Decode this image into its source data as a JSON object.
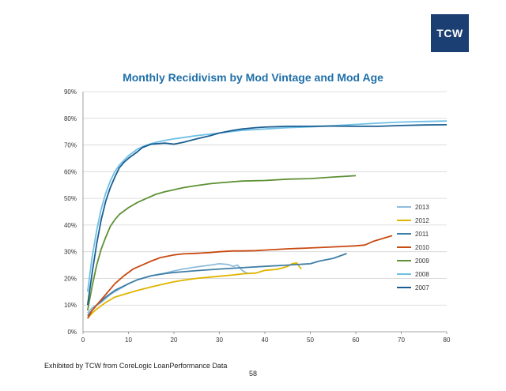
{
  "header": {
    "logo_text": "TCW"
  },
  "footer": {
    "source_note": "Exhibited by TCW from CoreLogic LoanPerformance Data",
    "page_number": "58"
  },
  "chart_data": {
    "type": "line",
    "title": "Monthly Recidivism by Mod Vintage and Mod Age",
    "xlabel": "",
    "ylabel": "",
    "xlim": [
      0,
      80
    ],
    "ylim": [
      0,
      90
    ],
    "x_ticks": [
      "0",
      "10",
      "20",
      "30",
      "40",
      "50",
      "60",
      "70",
      "80"
    ],
    "y_ticks": [
      "0%",
      "10%",
      "20%",
      "30%",
      "40%",
      "50%",
      "60%",
      "70%",
      "80%",
      "90%"
    ],
    "grid": "horizontal",
    "legend_position": "right",
    "series": [
      {
        "name": "2013",
        "color": "#8fbcdb",
        "points": [
          [
            1,
            7
          ],
          [
            2,
            9
          ],
          [
            3,
            10
          ],
          [
            4,
            11
          ],
          [
            5,
            12.5
          ],
          [
            6,
            14
          ],
          [
            8,
            16
          ],
          [
            10,
            18
          ],
          [
            12,
            19.5
          ],
          [
            15,
            21
          ],
          [
            18,
            22
          ],
          [
            20,
            22.8
          ],
          [
            22,
            23.5
          ],
          [
            25,
            24.3
          ],
          [
            28,
            25
          ],
          [
            30,
            25.5
          ],
          [
            32,
            25.2
          ],
          [
            33,
            24.5
          ],
          [
            34,
            25
          ],
          [
            35,
            23
          ],
          [
            36,
            22
          ],
          [
            37,
            21.8
          ]
        ]
      },
      {
        "name": "2012",
        "color": "#e0b400",
        "points": [
          [
            1,
            5
          ],
          [
            2,
            7
          ],
          [
            3,
            8.5
          ],
          [
            5,
            11
          ],
          [
            7,
            13
          ],
          [
            10,
            14.5
          ],
          [
            12,
            15.5
          ],
          [
            15,
            16.8
          ],
          [
            18,
            18
          ],
          [
            20,
            18.7
          ],
          [
            22,
            19.3
          ],
          [
            25,
            20
          ],
          [
            28,
            20.5
          ],
          [
            30,
            20.8
          ],
          [
            33,
            21.3
          ],
          [
            35,
            21.7
          ],
          [
            38,
            22
          ],
          [
            40,
            23
          ],
          [
            42,
            23.3
          ],
          [
            43,
            23.5
          ],
          [
            45,
            24.5
          ],
          [
            46,
            25.5
          ],
          [
            47,
            25.8
          ],
          [
            48,
            23.5
          ]
        ]
      },
      {
        "name": "2011",
        "color": "#3f7ea6",
        "points": [
          [
            1,
            6
          ],
          [
            2,
            8
          ],
          [
            3,
            10
          ],
          [
            5,
            13
          ],
          [
            7,
            15.5
          ],
          [
            10,
            18
          ],
          [
            12,
            19.5
          ],
          [
            15,
            21
          ],
          [
            18,
            21.8
          ],
          [
            20,
            22.2
          ],
          [
            25,
            22.9
          ],
          [
            30,
            23.5
          ],
          [
            35,
            24
          ],
          [
            40,
            24.5
          ],
          [
            45,
            25
          ],
          [
            50,
            25.5
          ],
          [
            52,
            26.5
          ],
          [
            55,
            27.5
          ],
          [
            58,
            29.3
          ]
        ]
      },
      {
        "name": "2010",
        "color": "#c94a12",
        "points": [
          [
            1,
            5
          ],
          [
            2,
            8
          ],
          [
            3,
            10
          ],
          [
            5,
            14
          ],
          [
            7,
            18
          ],
          [
            9,
            21
          ],
          [
            11,
            23.5
          ],
          [
            13,
            25
          ],
          [
            15,
            26.5
          ],
          [
            17,
            27.8
          ],
          [
            20,
            28.8
          ],
          [
            22,
            29.2
          ],
          [
            25,
            29.4
          ],
          [
            28,
            29.7
          ],
          [
            30,
            30
          ],
          [
            33,
            30.3
          ],
          [
            35,
            30.3
          ],
          [
            38,
            30.4
          ],
          [
            40,
            30.6
          ],
          [
            45,
            31.1
          ],
          [
            50,
            31.4
          ],
          [
            55,
            31.8
          ],
          [
            60,
            32.2
          ],
          [
            62,
            32.5
          ],
          [
            64,
            34
          ],
          [
            66,
            35
          ],
          [
            68,
            36
          ]
        ]
      },
      {
        "name": "2009",
        "color": "#5e9135",
        "points": [
          [
            1,
            8
          ],
          [
            2,
            17
          ],
          [
            3,
            25
          ],
          [
            4,
            31
          ],
          [
            5,
            35.5
          ],
          [
            6,
            39.5
          ],
          [
            7,
            42
          ],
          [
            8,
            44
          ],
          [
            10,
            46.5
          ],
          [
            12,
            48.5
          ],
          [
            14,
            50
          ],
          [
            16,
            51.5
          ],
          [
            18,
            52.5
          ],
          [
            20,
            53.2
          ],
          [
            22,
            54
          ],
          [
            25,
            54.8
          ],
          [
            28,
            55.5
          ],
          [
            30,
            55.8
          ],
          [
            35,
            56.5
          ],
          [
            40,
            56.7
          ],
          [
            45,
            57.2
          ],
          [
            50,
            57.4
          ],
          [
            55,
            58
          ],
          [
            58,
            58.3
          ],
          [
            60,
            58.5
          ]
        ]
      },
      {
        "name": "2008",
        "color": "#6fc0e6",
        "points": [
          [
            1,
            15
          ],
          [
            2,
            28
          ],
          [
            3,
            38
          ],
          [
            4,
            46
          ],
          [
            5,
            52
          ],
          [
            6,
            56.5
          ],
          [
            7,
            60
          ],
          [
            8,
            62.5
          ],
          [
            10,
            66
          ],
          [
            12,
            68.5
          ],
          [
            14,
            70
          ],
          [
            16,
            71
          ],
          [
            18,
            71.7
          ],
          [
            20,
            72.3
          ],
          [
            25,
            73.5
          ],
          [
            30,
            74.5
          ],
          [
            35,
            75.5
          ],
          [
            40,
            76
          ],
          [
            45,
            76.5
          ],
          [
            50,
            76.8
          ],
          [
            55,
            77.2
          ],
          [
            60,
            77.7
          ],
          [
            65,
            78.2
          ],
          [
            70,
            78.6
          ],
          [
            75,
            78.8
          ],
          [
            80,
            79
          ]
        ]
      },
      {
        "name": "2007",
        "color": "#1a5e91",
        "points": [
          [
            1,
            10
          ],
          [
            2,
            22
          ],
          [
            3,
            33
          ],
          [
            4,
            42
          ],
          [
            5,
            49
          ],
          [
            6,
            54
          ],
          [
            7,
            58
          ],
          [
            8,
            61.5
          ],
          [
            9,
            63.5
          ],
          [
            10,
            65
          ],
          [
            12,
            67.5
          ],
          [
            13,
            69
          ],
          [
            15,
            70.3
          ],
          [
            18,
            70.7
          ],
          [
            20,
            70.3
          ],
          [
            22,
            71
          ],
          [
            25,
            72.3
          ],
          [
            28,
            73.5
          ],
          [
            30,
            74.5
          ],
          [
            33,
            75.5
          ],
          [
            35,
            76
          ],
          [
            38,
            76.5
          ],
          [
            40,
            76.7
          ],
          [
            45,
            77
          ],
          [
            50,
            77
          ],
          [
            55,
            77.1
          ],
          [
            60,
            77
          ],
          [
            65,
            77
          ],
          [
            70,
            77.3
          ],
          [
            75,
            77.5
          ],
          [
            80,
            77.6
          ]
        ]
      }
    ]
  }
}
